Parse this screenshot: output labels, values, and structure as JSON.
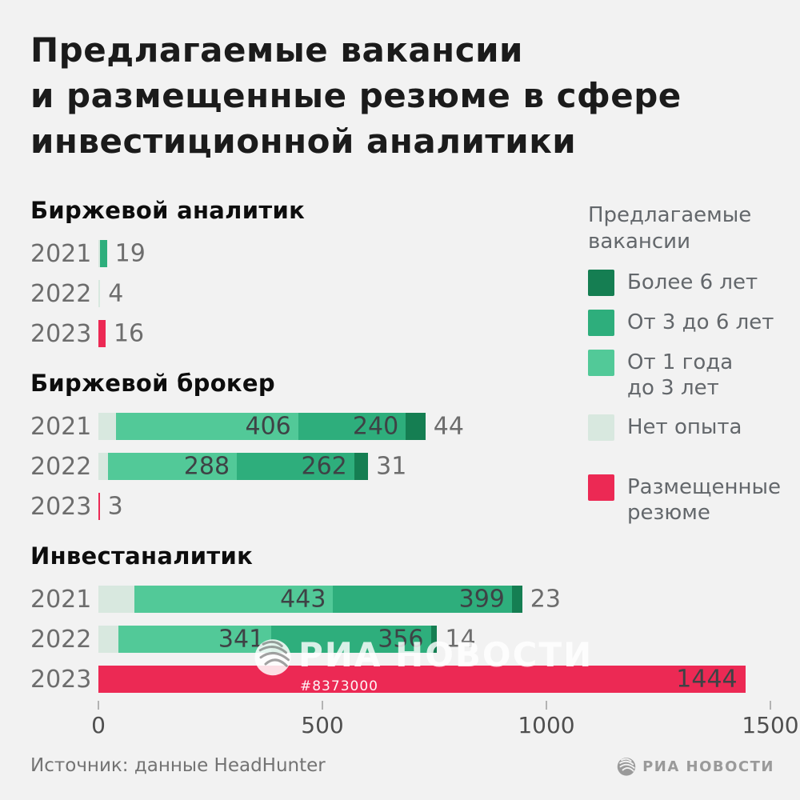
{
  "title": {
    "lines": [
      "Предлагаемые вакансии",
      "и размещенные резюме в сфере",
      "инвестиционной аналитики"
    ]
  },
  "legend": {
    "title_lines": [
      "Предлагаемые",
      "вакансии"
    ],
    "items": [
      {
        "key": "y6",
        "lines": [
          "Более 6 лет"
        ],
        "gap_before": false
      },
      {
        "key": "y3_6",
        "lines": [
          "От 3 до 6 лет"
        ],
        "gap_before": false
      },
      {
        "key": "y1_3",
        "lines": [
          "От 1 года",
          "до 3 лет"
        ],
        "gap_before": false
      },
      {
        "key": "no_exp",
        "lines": [
          "Нет опыта"
        ],
        "gap_before": false
      },
      {
        "key": "resumes",
        "lines": [
          "Размещенные",
          "резюме"
        ],
        "gap_before": true
      }
    ]
  },
  "palette": {
    "no_exp": "#d8e8df",
    "y1_3": "#52c998",
    "y3_6": "#2eae7c",
    "y6": "#157e52",
    "resumes": "#ec2954"
  },
  "watermark": {
    "logo_text": "РИА НОВОСТИ",
    "id_text": "#8373000",
    "band_color": "rgba(77,77,77,0.5)"
  },
  "footer": {
    "source": "Источник: данные HeadHunter",
    "brand": "РИА НОВОСТИ"
  },
  "chart_data": {
    "type": "bar",
    "orientation": "horizontal-stacked",
    "xlim": [
      0,
      1500
    ],
    "x_ticks": [
      0,
      500,
      1000,
      1500
    ],
    "legend_series": [
      "Более 6 лет",
      "От 3 до 6 лет",
      "От 1 года до 3 лет",
      "Нет опыта",
      "Размещенные резюме"
    ],
    "groups": [
      {
        "title": "Биржевой аналитик",
        "rows": [
          {
            "year": "2021",
            "segments": [
              {
                "key": "no_exp",
                "value": 3
              },
              {
                "key": "y3_6",
                "value": 16
              }
            ],
            "total_label": "19",
            "label_mode": "outside"
          },
          {
            "year": "2022",
            "segments": [
              {
                "key": "no_exp",
                "value": 4
              }
            ],
            "total_label": "4",
            "label_mode": "outside"
          },
          {
            "year": "2023",
            "segments": [
              {
                "key": "resumes",
                "value": 16
              }
            ],
            "total_label": "16",
            "label_mode": "outside"
          }
        ]
      },
      {
        "title": "Биржевой брокер",
        "rows": [
          {
            "year": "2021",
            "segments": [
              {
                "key": "no_exp",
                "value": 40,
                "label": "40"
              },
              {
                "key": "y1_3",
                "value": 406,
                "label": "406"
              },
              {
                "key": "y3_6",
                "value": 240,
                "label": "240"
              },
              {
                "key": "y6",
                "value": 44,
                "label": "44"
              }
            ]
          },
          {
            "year": "2022",
            "segments": [
              {
                "key": "no_exp",
                "value": 21,
                "label": "21"
              },
              {
                "key": "y1_3",
                "value": 288,
                "label": "288"
              },
              {
                "key": "y3_6",
                "value": 262,
                "label": "262"
              },
              {
                "key": "y6",
                "value": 31,
                "label": "31"
              }
            ]
          },
          {
            "year": "2023",
            "segments": [
              {
                "key": "resumes",
                "value": 3
              }
            ],
            "total_label": "3",
            "label_mode": "outside"
          }
        ]
      },
      {
        "title": "Инвестаналитик",
        "rows": [
          {
            "year": "2021",
            "segments": [
              {
                "key": "no_exp",
                "value": 81,
                "label": "81"
              },
              {
                "key": "y1_3",
                "value": 443,
                "label": "443"
              },
              {
                "key": "y3_6",
                "value": 399,
                "label": "399"
              },
              {
                "key": "y6",
                "value": 23,
                "label": "23"
              }
            ]
          },
          {
            "year": "2022",
            "segments": [
              {
                "key": "no_exp",
                "value": 45,
                "label": "45"
              },
              {
                "key": "y1_3",
                "value": 341,
                "label": "341"
              },
              {
                "key": "y3_6",
                "value": 356,
                "label": "356"
              },
              {
                "key": "y6",
                "value": 14,
                "label": "14"
              }
            ]
          },
          {
            "year": "2023",
            "segments": [
              {
                "key": "resumes",
                "value": 1444
              }
            ],
            "total_label": "1444",
            "label_mode": "inside"
          }
        ]
      }
    ]
  }
}
